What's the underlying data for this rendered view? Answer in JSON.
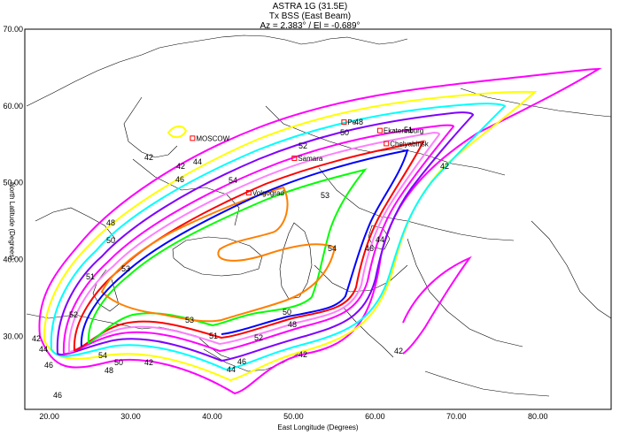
{
  "header": {
    "line1": "ASTRA 1G (31.5E)",
    "line2": "Tx BSS (East Beam)",
    "line3": "Az = 2.383° / El = -0.689°"
  },
  "axes": {
    "xlabel": "East Longitude (Degrees)",
    "ylabel": "North Latitude (Degrees)",
    "xlim": [
      17.0,
      89.0
    ],
    "ylim": [
      20.5,
      70.0
    ],
    "xticks": [
      "20.00",
      "30.00",
      "40.00",
      "50.00",
      "60.00",
      "70.00",
      "80.00"
    ],
    "xtick_values": [
      20,
      30,
      40,
      50,
      60,
      70,
      80
    ],
    "yticks": [
      "70.00",
      "60.00",
      "50.00",
      "40.00",
      "30.00"
    ],
    "ytick_values": [
      70,
      60,
      50,
      40,
      30
    ]
  },
  "colors": {
    "c42": "#ff00ff",
    "c44": "#ffff00",
    "c46": "#00ffff",
    "c48": "#8000ff",
    "c50": "#ff00ff",
    "c51": "#ff80ff",
    "c52": "#ff0000",
    "c53": "#00ff00",
    "c54": "#ff8000",
    "blue": "#0000ff",
    "map": "#000000"
  },
  "contour_labels": {
    "l42": "42",
    "l44": "44",
    "l46": "46",
    "l48": "48",
    "l50": "50",
    "l51": "51",
    "l52": "52",
    "l53": "53",
    "l54": "54"
  },
  "cities": {
    "moscow": "MOSCOW",
    "perm": "Pe",
    "ekaterinburg": "Ekaterinburg",
    "chelyabinsk": "Chelyabinsk",
    "samara": "Samara",
    "volgograd": "Volgograd"
  },
  "city_coords": {
    "moscow": [
      37.6,
      55.8
    ],
    "perm": [
      56.2,
      57.9
    ],
    "ekaterinburg": [
      60.6,
      56.8
    ],
    "chelyabinsk": [
      61.4,
      55.1
    ],
    "samara": [
      50.1,
      53.2
    ],
    "volgograd": [
      44.5,
      48.7
    ]
  }
}
